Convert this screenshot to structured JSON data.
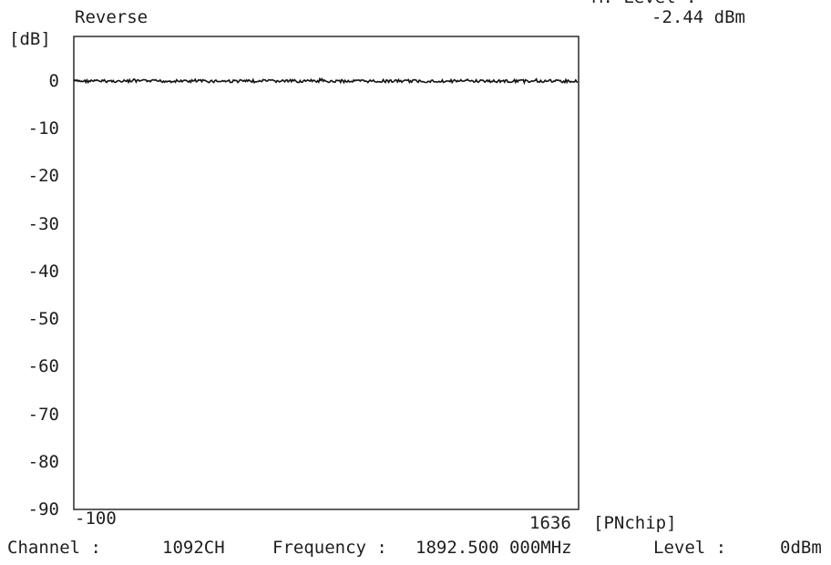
{
  "header": {
    "top_right_partial": "M. Level :",
    "top_right_value": "-2.44 dBm"
  },
  "chart_data": {
    "type": "line",
    "title": "Reverse",
    "ylabel": "[dB]",
    "xlabel": "[PNchip]",
    "xlim": [
      -100,
      1636
    ],
    "ylim": [
      -90,
      0
    ],
    "yticks": [
      0,
      -10,
      -20,
      -30,
      -40,
      -50,
      -60,
      -70,
      -80,
      -90
    ],
    "ytick_labels": [
      "0",
      "-10",
      "-20",
      "-30",
      "-40",
      "-50",
      "-60",
      "-70",
      "-80",
      "-90"
    ],
    "xtick_labels": [
      "-100",
      "1636"
    ],
    "grid": false,
    "series": [
      {
        "x": [
          -100,
          1636
        ],
        "values": [
          0,
          0
        ],
        "color": "#111111"
      }
    ]
  },
  "footer": {
    "channel_label": "Channel :",
    "channel_value": "1092CH",
    "frequency_label": "Frequency :",
    "frequency_value": "1892.500 000MHz",
    "level_label": "Level :",
    "level_value": "0dBm"
  }
}
